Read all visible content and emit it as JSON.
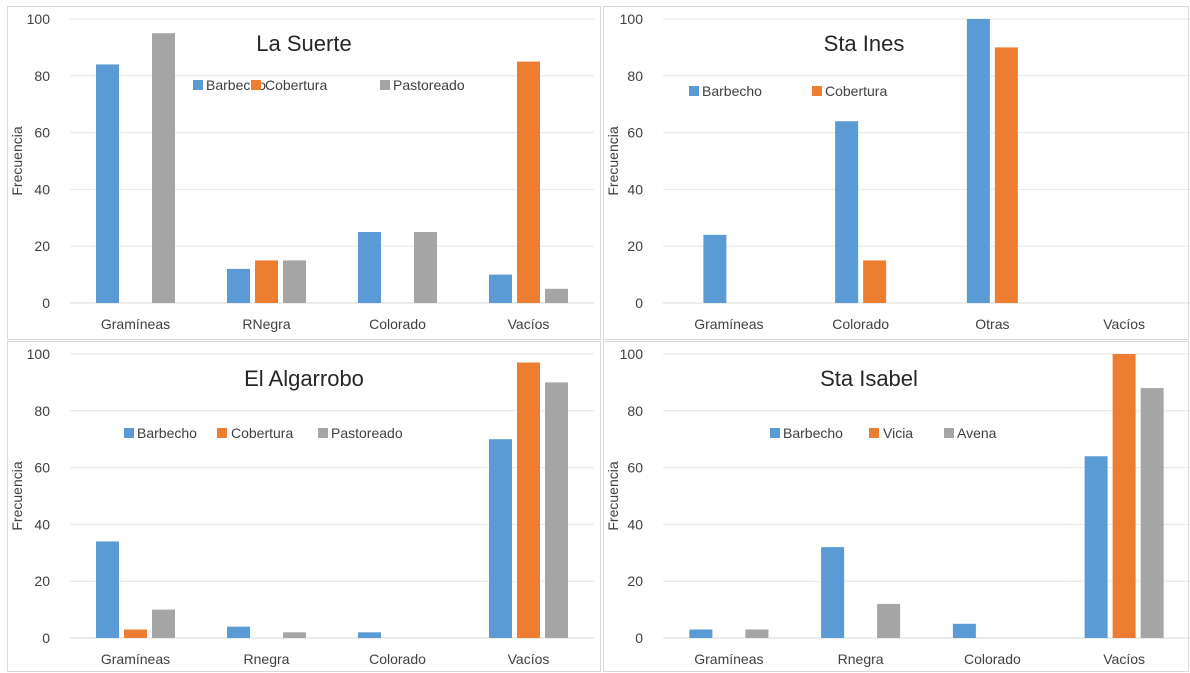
{
  "chart_data": [
    {
      "type": "bar",
      "title": "La Suerte",
      "ylabel": "Frecuencia",
      "xlabel": "",
      "categories": [
        "Gramíneas",
        "RNegra",
        "Colorado",
        "Vacíos"
      ],
      "ylim": [
        0,
        100
      ],
      "yticks": [
        "0",
        "20",
        "40",
        "60",
        "80",
        "100"
      ],
      "grid": true,
      "legend": "top-center",
      "series": [
        {
          "name": "Barbecho",
          "color": "#5b9bd5",
          "values": [
            84,
            12,
            25,
            10
          ]
        },
        {
          "name": "Cobertura",
          "color": "#ed7d31",
          "values": [
            0,
            15,
            0,
            85
          ]
        },
        {
          "name": "Pastoreado",
          "color": "#a5a5a5",
          "values": [
            95,
            15,
            25,
            5
          ]
        }
      ]
    },
    {
      "type": "bar",
      "title": "Sta Ines",
      "ylabel": "Frecuencia",
      "xlabel": "",
      "categories": [
        "Gramíneas",
        "Colorado",
        "Otras",
        "Vacíos"
      ],
      "ylim": [
        0,
        100
      ],
      "yticks": [
        "0",
        "20",
        "40",
        "60",
        "80",
        "100"
      ],
      "grid": true,
      "legend": "top-left",
      "series": [
        {
          "name": "Barbecho",
          "color": "#5b9bd5",
          "values": [
            24,
            64,
            100,
            0
          ]
        },
        {
          "name": "Cobertura",
          "color": "#ed7d31",
          "values": [
            0,
            15,
            90,
            0
          ]
        }
      ]
    },
    {
      "type": "bar",
      "title": "El Algarrobo",
      "ylabel": "Frecuencia",
      "xlabel": "",
      "categories": [
        "Gramíneas",
        "Rnegra",
        "Colorado",
        "Vacíos"
      ],
      "ylim": [
        0,
        100
      ],
      "yticks": [
        "0",
        "20",
        "40",
        "60",
        "80",
        "100"
      ],
      "grid": true,
      "legend": "top-center",
      "series": [
        {
          "name": "Barbecho",
          "color": "#5b9bd5",
          "values": [
            34,
            4,
            2,
            70
          ]
        },
        {
          "name": "Cobertura",
          "color": "#ed7d31",
          "values": [
            3,
            0,
            0,
            97
          ]
        },
        {
          "name": "Pastoreado",
          "color": "#a5a5a5",
          "values": [
            10,
            2,
            0,
            90
          ]
        }
      ]
    },
    {
      "type": "bar",
      "title": "Sta Isabel",
      "ylabel": "Frecuencia",
      "xlabel": "",
      "categories": [
        "Gramíneas",
        "Rnegra",
        "Colorado",
        "Vacíos"
      ],
      "ylim": [
        0,
        100
      ],
      "yticks": [
        "0",
        "20",
        "40",
        "60",
        "80",
        "100"
      ],
      "grid": true,
      "legend": "top-center",
      "series": [
        {
          "name": "Barbecho",
          "color": "#5b9bd5",
          "values": [
            3,
            32,
            5,
            64
          ]
        },
        {
          "name": "Vicia",
          "color": "#ed7d31",
          "values": [
            0,
            0,
            0,
            100
          ]
        },
        {
          "name": "Avena",
          "color": "#a5a5a5",
          "values": [
            3,
            12,
            0,
            88
          ]
        }
      ]
    }
  ]
}
